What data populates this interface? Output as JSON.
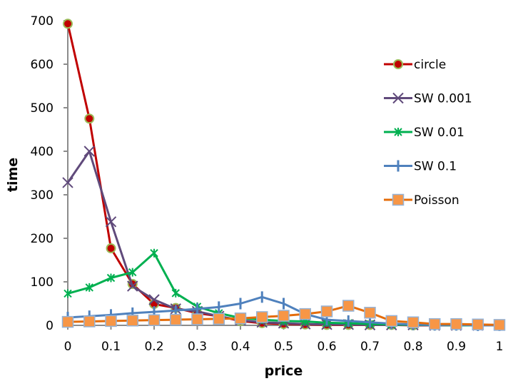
{
  "chart_data": {
    "type": "line",
    "title": "",
    "xlabel": "price",
    "ylabel": "time",
    "xlim": [
      0,
      1
    ],
    "ylim": [
      0,
      700
    ],
    "x_ticks": [
      "0",
      "0.1",
      "0.2",
      "0.3",
      "0.4",
      "0.5",
      "0.6",
      "0.7",
      "0.8",
      "0.9",
      "1"
    ],
    "x_tick_values": [
      0,
      0.1,
      0.2,
      0.3,
      0.4,
      0.5,
      0.6,
      0.7,
      0.8,
      0.9,
      1
    ],
    "y_ticks": [
      "0",
      "100",
      "200",
      "300",
      "400",
      "500",
      "600",
      "700"
    ],
    "y_tick_values": [
      0,
      100,
      200,
      300,
      400,
      500,
      600,
      700
    ],
    "grid": false,
    "legend_position": "right",
    "x": [
      0,
      0.05,
      0.1,
      0.15,
      0.2,
      0.25,
      0.3,
      0.35,
      0.4,
      0.45,
      0.5,
      0.55,
      0.6,
      0.65,
      0.7,
      0.75,
      0.8,
      0.85,
      0.9,
      0.95,
      1
    ],
    "series": [
      {
        "name": "circle",
        "marker": "circle",
        "color": "#C00000",
        "marker_fill": "#C00000",
        "marker_edge": "#9BBB59",
        "values": [
          693,
          475,
          177,
          95,
          49,
          40,
          28,
          21,
          10,
          5,
          3,
          2,
          1,
          1,
          1,
          1,
          0,
          0,
          0,
          0,
          0
        ]
      },
      {
        "name": "SW 0.001",
        "marker": "x",
        "color": "#604A7B",
        "marker_fill": "#604A7B",
        "marker_edge": "#604A7B",
        "values": [
          328,
          400,
          238,
          90,
          59,
          38,
          32,
          21,
          12,
          7,
          5,
          3,
          2,
          2,
          1,
          1,
          1,
          0,
          0,
          0,
          0
        ]
      },
      {
        "name": "SW 0.01",
        "marker": "star",
        "color": "#00B050",
        "marker_fill": "#00B050",
        "marker_edge": "#00B050",
        "values": [
          73,
          87,
          109,
          122,
          166,
          74,
          43,
          28,
          17,
          13,
          10,
          9,
          6,
          5,
          3,
          2,
          1,
          1,
          0,
          0,
          0
        ]
      },
      {
        "name": "SW 0.1",
        "marker": "plus",
        "color": "#4F81BD",
        "marker_fill": "#4F81BD",
        "marker_edge": "#4F81BD",
        "values": [
          18,
          21,
          24,
          28,
          31,
          34,
          38,
          42,
          50,
          65,
          50,
          26,
          13,
          10,
          7,
          4,
          2,
          1,
          1,
          0,
          0
        ]
      },
      {
        "name": "Poisson",
        "marker": "square",
        "color": "#E46C0A",
        "marker_fill": "#F79646",
        "marker_edge": "#95B3D7",
        "values": [
          8,
          9,
          10,
          11,
          12,
          13,
          14,
          15,
          16,
          19,
          22,
          26,
          32,
          45,
          29,
          10,
          7,
          3,
          3,
          2,
          1
        ]
      }
    ]
  }
}
